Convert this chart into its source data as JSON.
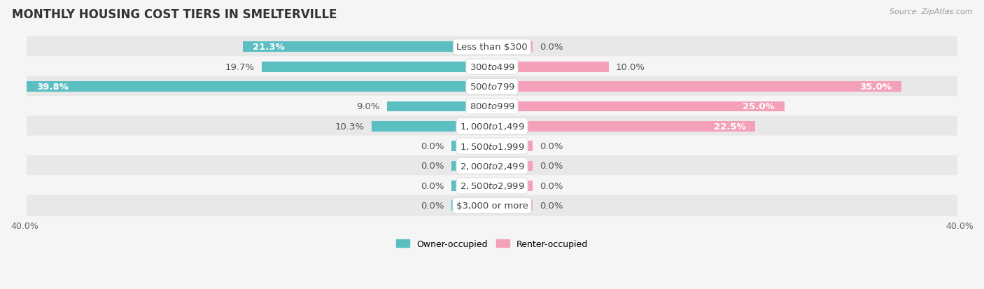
{
  "title": "MONTHLY HOUSING COST TIERS IN SMELTERVILLE",
  "source": "Source: ZipAtlas.com",
  "categories": [
    "Less than $300",
    "$300 to $499",
    "$500 to $799",
    "$800 to $999",
    "$1,000 to $1,499",
    "$1,500 to $1,999",
    "$2,000 to $2,499",
    "$2,500 to $2,999",
    "$3,000 or more"
  ],
  "owner_values": [
    21.3,
    19.7,
    39.8,
    9.0,
    10.3,
    0.0,
    0.0,
    0.0,
    0.0
  ],
  "renter_values": [
    0.0,
    10.0,
    35.0,
    25.0,
    22.5,
    0.0,
    0.0,
    0.0,
    0.0
  ],
  "owner_color": "#5bbfc2",
  "renter_color": "#f4a0b8",
  "axis_limit": 40.0,
  "background_color": "#f5f5f5",
  "row_color_light": "#f0f0f0",
  "row_color_white": "#fafafa",
  "bar_height": 0.52,
  "stub_size": 3.5,
  "title_fontsize": 12,
  "label_fontsize": 9.5,
  "category_fontsize": 9.5,
  "axis_label_fontsize": 9,
  "legend_fontsize": 9,
  "source_fontsize": 8
}
